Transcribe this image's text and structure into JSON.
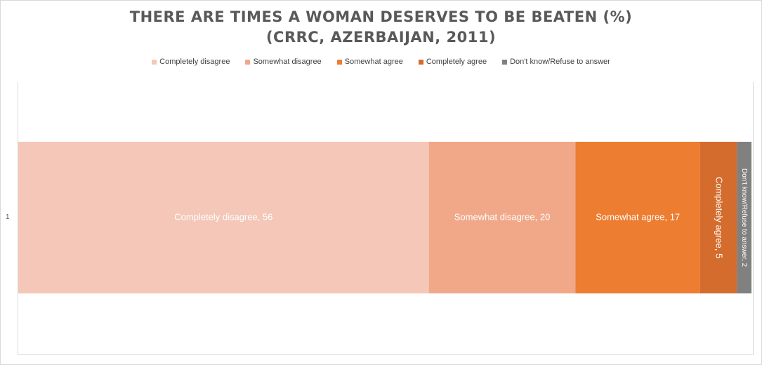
{
  "chart_data": {
    "type": "bar",
    "orientation": "horizontal",
    "stacked": true,
    "title_line1": "THERE ARE TIMES A WOMAN DESERVES TO BE BEATEN (%)",
    "title_line2": "(CRRC, AZERBAIJAN, 2011)",
    "categories": [
      "1"
    ],
    "xlim": [
      0,
      100
    ],
    "legend_position": "top",
    "series": [
      {
        "name": "Completely disagree",
        "values": [
          56
        ],
        "color": "#f4c7b8",
        "label": "Completely disagree, 56",
        "label_color": "#ffffff",
        "rotated": false
      },
      {
        "name": "Somewhat disagree",
        "values": [
          20
        ],
        "color": "#f0a889",
        "label": "Somewhat disagree, 20",
        "label_color": "#ffffff",
        "rotated": false
      },
      {
        "name": "Somewhat agree",
        "values": [
          17
        ],
        "color": "#ed7d31",
        "label": "Somewhat agree, 17",
        "label_color": "#ffffff",
        "rotated": false
      },
      {
        "name": "Completely agree",
        "values": [
          5
        ],
        "color": "#d36c2c",
        "label": "Completely agree, 5",
        "label_color": "#ffffff",
        "rotated": true
      },
      {
        "name": "Don't know/Refuse to answer",
        "values": [
          2
        ],
        "color": "#808080",
        "label": "Don't know/Refuse to answer, 2",
        "label_color": "#ffffff",
        "rotated": true
      }
    ]
  }
}
